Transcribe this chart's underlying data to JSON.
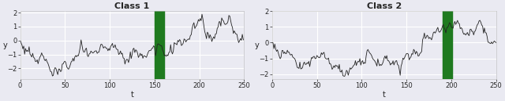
{
  "title1": "Class 1",
  "title2": "Class 2",
  "xlabel": "t",
  "ylabel": "y",
  "xlim": [
    0,
    250
  ],
  "n_points": 251,
  "highlight1_start": 150,
  "highlight1_end": 162,
  "highlight2_start": 190,
  "highlight2_end": 202,
  "highlight_color": "#1f7a1f",
  "highlight_alpha": 1.0,
  "line_color": "#222222",
  "line_width": 0.6,
  "bg_color": "#eaeaf2",
  "grid_color": "#ffffff",
  "title_fontsize": 8,
  "label_fontsize": 7,
  "tick_fontsize": 6,
  "yticks": [
    -2,
    -1,
    0,
    1,
    2
  ],
  "xticks": [
    0,
    50,
    100,
    150,
    200,
    250
  ],
  "ts1_seed": 1,
  "ts2_seed": 2,
  "ts1_scale": 1.0,
  "ts2_scale": 1.0
}
